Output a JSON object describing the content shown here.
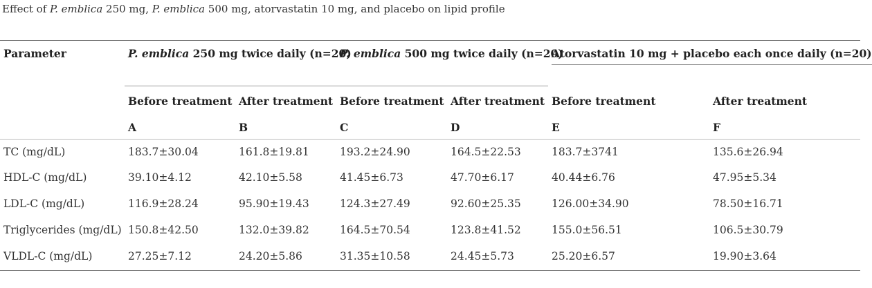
{
  "caption": {
    "prefix": "Effect of ",
    "drug1": "P. emblica",
    "mid1": " 250 mg, ",
    "drug2": "P. emblica",
    "mid2": " 500 mg, atorvastatin 10 mg, and placebo on lipid profile"
  },
  "header": {
    "parameter": "Parameter",
    "group1_drug": "P. emblica",
    "group1_rest": " 250 mg twice daily (n=20)",
    "group2_drug": "P. emblica",
    "group2_rest": " 500 mg twice daily (n=20)",
    "group3": "Atorvastatin 10 mg + placebo each once daily (n=20)",
    "before": "Before treatment",
    "after": "After treatment",
    "letters": [
      "A",
      "B",
      "C",
      "D",
      "E",
      "F"
    ]
  },
  "rows": [
    {
      "param": "TC (mg/dL)",
      "values": [
        "183.7±30.04",
        "161.8±19.81",
        "193.2±24.90",
        "164.5±22.53",
        "183.7±3741",
        "135.6±26.94"
      ]
    },
    {
      "param": "HDL-C (mg/dL)",
      "values": [
        "39.10±4.12",
        "42.10±5.58",
        "41.45±6.73",
        "47.70±6.17",
        "40.44±6.76",
        "47.95±5.34"
      ]
    },
    {
      "param": "LDL-C (mg/dL)",
      "values": [
        "116.9±28.24",
        "95.90±19.43",
        "124.3±27.49",
        "92.60±25.35",
        "126.00±34.90",
        "78.50±16.71"
      ]
    },
    {
      "param": "Triglycerides (mg/dL)",
      "values": [
        "150.8±42.50",
        "132.0±39.82",
        "164.5±70.54",
        "123.8±41.52",
        "155.0±56.51",
        "106.5±30.79"
      ]
    },
    {
      "param": "VLDL-C (mg/dL)",
      "values": [
        "27.25±7.12",
        "24.20±5.86",
        "31.35±10.58",
        "24.45±5.73",
        "25.20±6.57",
        "19.90±3.64"
      ]
    }
  ]
}
